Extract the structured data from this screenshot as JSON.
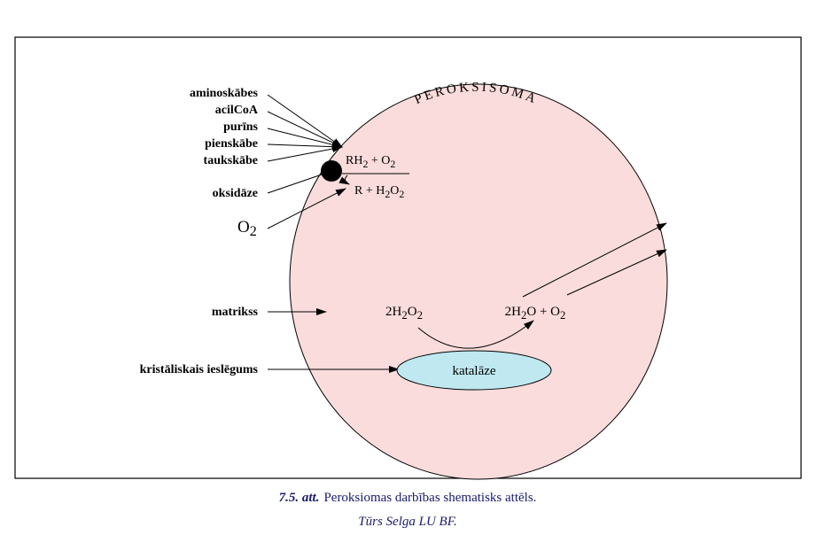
{
  "title": "PEROKSISOMA",
  "inputs": [
    "aminoskābes",
    "acilCoA",
    "purīns",
    "pienskābe",
    "taukskābe"
  ],
  "labels": {
    "oxidase": "oksidāze",
    "oxygen": [
      "O",
      "2"
    ],
    "matrix": "matrikss",
    "crystal": "kristāliskais ieslēgums"
  },
  "reactions": {
    "substrate": [
      "RH",
      "2",
      " + O",
      "2"
    ],
    "product": [
      "R + H",
      "2",
      "O",
      "2"
    ],
    "peroxide": [
      "2H",
      "2",
      "O",
      "2"
    ],
    "decomposition": [
      "2H",
      "2",
      "O + O",
      "2"
    ]
  },
  "enzyme": "katalāze",
  "caption": {
    "label": "7.5. att.",
    "text": "Peroksiomas darbības shematisks attēls.",
    "source": "Tūrs Selga LU BF."
  }
}
